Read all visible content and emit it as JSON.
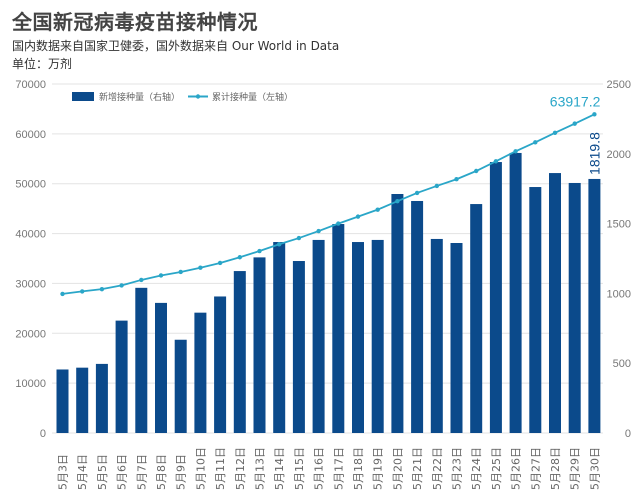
{
  "header": {
    "title": "全国新冠病毒疫苗接种情况",
    "subtitle": "国内数据来自国家卫健委，国外数据来自 Our World in Data",
    "unit": "单位：万剂"
  },
  "colors": {
    "bar": "#0b4a8b",
    "line": "#2aa6c8",
    "grid": "#e3e3e3"
  },
  "chart_data": {
    "type": "bar+line",
    "title": "全国新冠病毒疫苗接种情况",
    "categories": [
      "5月3日",
      "5月4日",
      "5月5日",
      "5月6日",
      "5月7日",
      "5月8日",
      "5月9日",
      "5月10日",
      "5月11日",
      "5月12日",
      "5月13日",
      "5月14日",
      "5月15日",
      "5月16日",
      "5月17日",
      "5月18日",
      "5月19日",
      "5月20日",
      "5月21日",
      "5月22日",
      "5月23日",
      "5月24日",
      "5月25日",
      "5月26日",
      "5月27日",
      "5月28日",
      "5月29日",
      "5月30日"
    ],
    "series": [
      {
        "name": "新增接种量（右轴）",
        "type": "bar",
        "axis": "right",
        "values": [
          455,
          468,
          495,
          805,
          1040,
          932,
          668,
          862,
          978,
          1160,
          1258,
          1368,
          1232,
          1383,
          1497,
          1368,
          1383,
          1712,
          1662,
          1390,
          1361,
          1640,
          1941,
          2006,
          1762,
          1862,
          1791,
          1819.8
        ]
      },
      {
        "name": "累计接种量（左轴）",
        "type": "line",
        "axis": "left",
        "values": [
          27900,
          28400,
          28850,
          29600,
          30700,
          31600,
          32300,
          33150,
          34100,
          35250,
          36500,
          37850,
          39100,
          40500,
          42000,
          43400,
          44800,
          46500,
          48150,
          49550,
          50900,
          52550,
          54500,
          56500,
          58300,
          60200,
          62050,
          63917.2
        ]
      }
    ],
    "left_axis": {
      "ylim": [
        0,
        70000
      ],
      "ticks": [
        "0",
        "10000",
        "20000",
        "30000",
        "40000",
        "50000",
        "60000",
        "70000"
      ]
    },
    "right_axis": {
      "ylim": [
        0,
        2500
      ],
      "ticks": [
        "0",
        "500",
        "1000",
        "1500",
        "2000",
        "2500"
      ]
    },
    "annotations": {
      "last_cumulative": "63917.2",
      "last_daily": "1819.8"
    },
    "legend": {
      "placement": "top-left",
      "bar_label": "新增接种量（右轴）",
      "line_label": "累计接种量（左轴）"
    },
    "grid": true
  }
}
